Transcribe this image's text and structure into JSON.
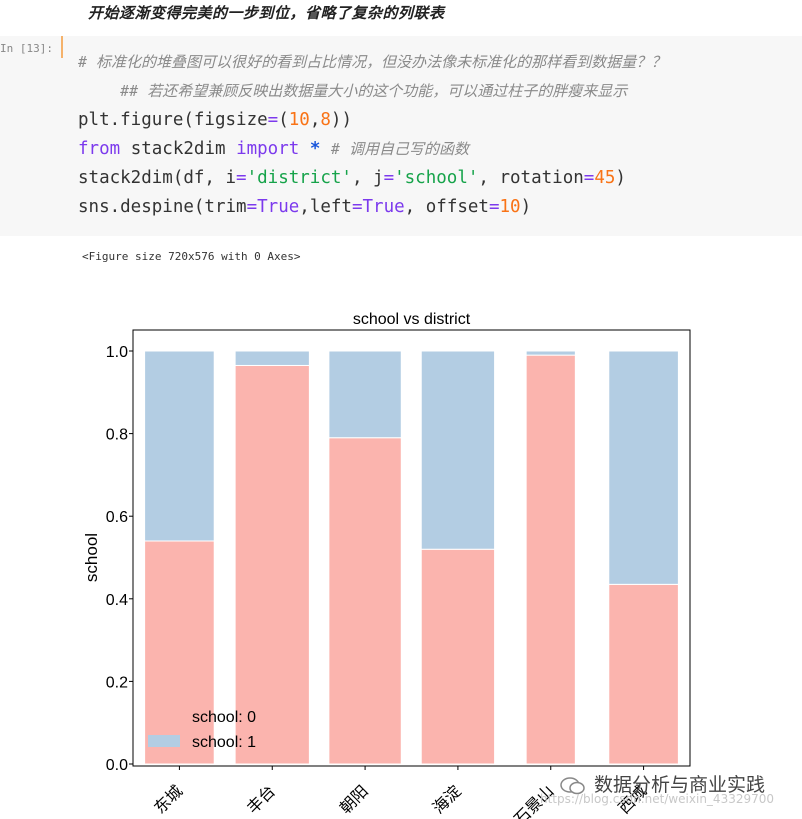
{
  "markdown_heading": "开始逐渐变得完美的一步到位，省略了复杂的列联表",
  "cell": {
    "prompt": "In [13]:",
    "code_lines": [
      {
        "indent": "",
        "parts": [
          {
            "cls": "c-comment",
            "text": "# 标准化的堆叠图可以很好的看到占比情况，但没办法像未标准化的那样看到数据量？？"
          }
        ]
      },
      {
        "indent": "    ",
        "parts": [
          {
            "cls": "c-comment",
            "text": "## 若还希望兼顾反映出数据量大小的这个功能，可以通过柱子的胖瘦来显示"
          }
        ]
      },
      {
        "indent": "",
        "parts": [
          {
            "cls": "",
            "text": "plt.figure(figsize"
          },
          {
            "cls": "c-op",
            "text": "="
          },
          {
            "cls": "",
            "text": "("
          },
          {
            "cls": "c-num",
            "text": "10"
          },
          {
            "cls": "",
            "text": ","
          },
          {
            "cls": "c-num",
            "text": "8"
          },
          {
            "cls": "",
            "text": "))"
          }
        ]
      },
      {
        "indent": "",
        "parts": [
          {
            "cls": "c-kw",
            "text": "from"
          },
          {
            "cls": "",
            "text": " stack2dim "
          },
          {
            "cls": "c-kw",
            "text": "import"
          },
          {
            "cls": "",
            "text": " "
          },
          {
            "cls": "c-kwb",
            "text": "*"
          },
          {
            "cls": "",
            "text": " "
          },
          {
            "cls": "c-comment",
            "text": "# 调用自己写的函数"
          }
        ]
      },
      {
        "indent": "",
        "parts": [
          {
            "cls": "",
            "text": "stack2dim(df, i"
          },
          {
            "cls": "c-op",
            "text": "="
          },
          {
            "cls": "c-str",
            "text": "'district'"
          },
          {
            "cls": "",
            "text": ", j"
          },
          {
            "cls": "c-op",
            "text": "="
          },
          {
            "cls": "c-str",
            "text": "'school'"
          },
          {
            "cls": "",
            "text": ", rotation"
          },
          {
            "cls": "c-op",
            "text": "="
          },
          {
            "cls": "c-num",
            "text": "45"
          },
          {
            "cls": "",
            "text": ")"
          }
        ]
      },
      {
        "indent": "",
        "parts": [
          {
            "cls": "",
            "text": "sns.despine(trim"
          },
          {
            "cls": "c-op",
            "text": "="
          },
          {
            "cls": "c-bool",
            "text": "True"
          },
          {
            "cls": "",
            "text": ",left"
          },
          {
            "cls": "c-op",
            "text": "="
          },
          {
            "cls": "c-bool",
            "text": "True"
          },
          {
            "cls": "",
            "text": ", offset"
          },
          {
            "cls": "c-op",
            "text": "="
          },
          {
            "cls": "c-num",
            "text": "10"
          },
          {
            "cls": "",
            "text": ")"
          }
        ]
      }
    ]
  },
  "output_text": "<Figure size 720x576 with 0 Axes>",
  "chart_data": {
    "type": "bar",
    "stacked": true,
    "title": "school vs district",
    "xlabel": "",
    "ylabel": "school",
    "ylim": [
      0,
      1.0
    ],
    "yticks": [
      "0.0",
      "0.2",
      "0.4",
      "0.6",
      "0.8",
      "1.0"
    ],
    "categories": [
      "东城",
      "丰台",
      "朝阳",
      "海淀",
      "石景山",
      "西城"
    ],
    "widths": [
      0.75,
      0.8,
      0.78,
      0.79,
      0.53,
      0.75
    ],
    "series": [
      {
        "name": "school: 0",
        "color": "#fbb4ae",
        "values": [
          0.54,
          0.965,
          0.79,
          0.52,
          0.99,
          0.435
        ]
      },
      {
        "name": "school: 1",
        "color": "#b3cde3",
        "values": [
          0.46,
          0.035,
          0.21,
          0.48,
          0.01,
          0.565
        ]
      }
    ],
    "legend_position": "lower-left",
    "grid": false
  },
  "watermark": {
    "text": "数据分析与商业实践",
    "url": "https://blog.csdn.net/weixin_43329700"
  }
}
